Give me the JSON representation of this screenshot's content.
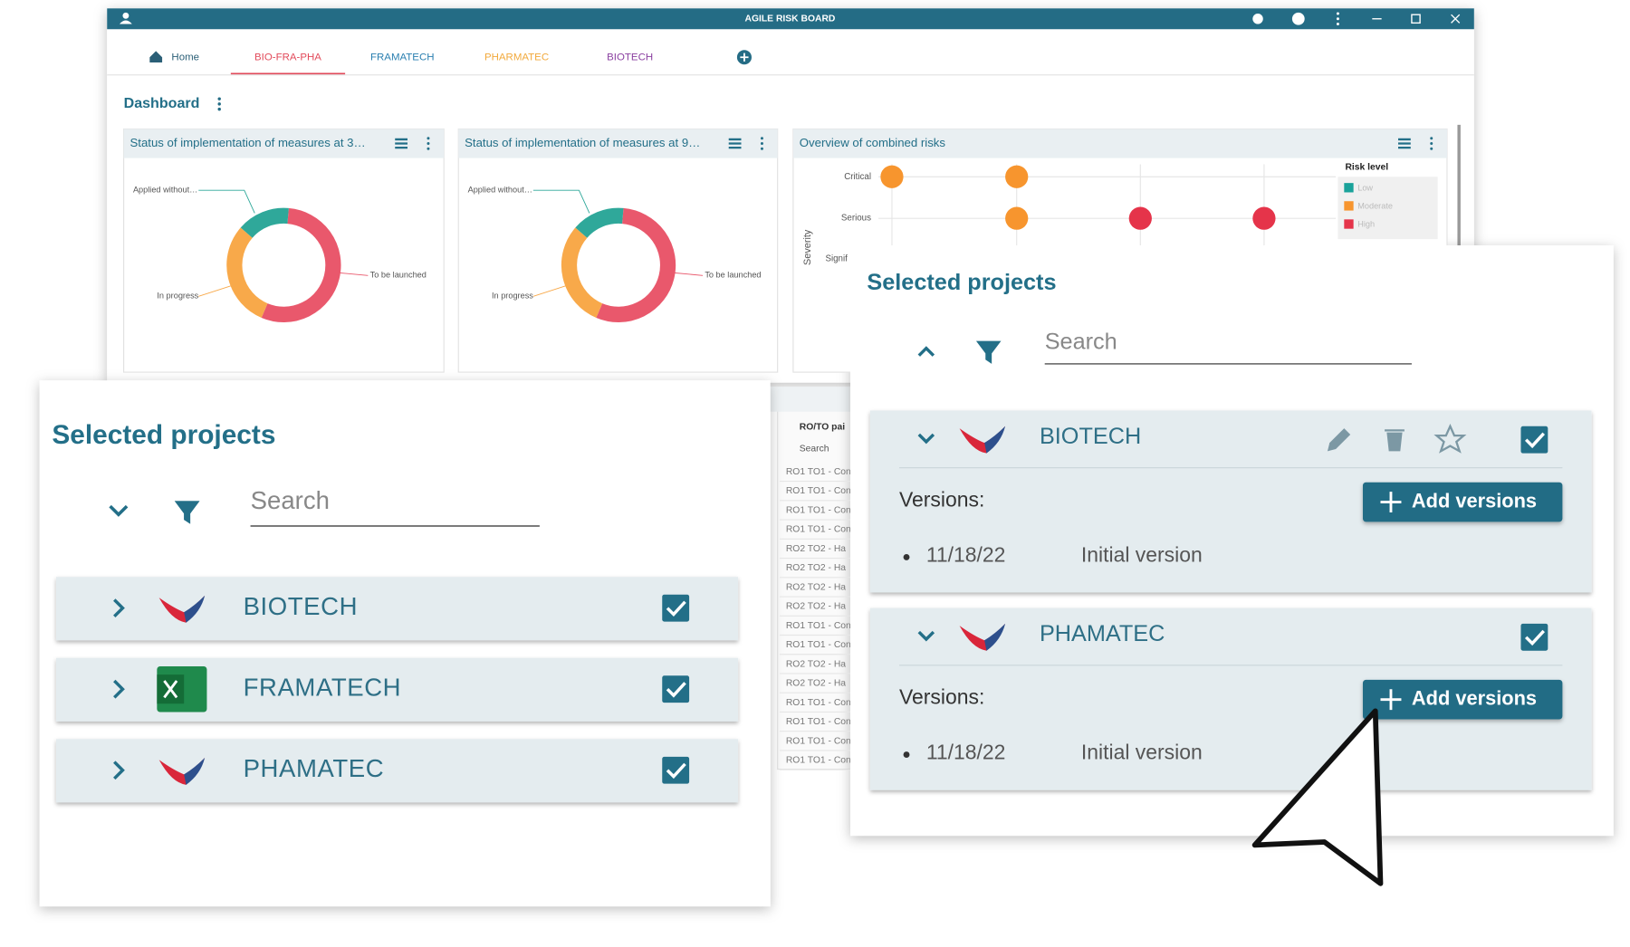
{
  "window": {
    "title": "AGILE RISK BOARD"
  },
  "tabs": [
    "Home",
    "BIO-FRA-PHA",
    "FRAMATECH",
    "PHARMATEC",
    "BIOTECH"
  ],
  "dashboard": {
    "title": "Dashboard",
    "widgets": [
      {
        "title": "Status of implementation of measures at 3…",
        "type": "donut",
        "labels": [
          "To be launched",
          "In progress",
          "Applied without…"
        ],
        "values": [
          55,
          30,
          15
        ],
        "colors": [
          "#e9586c",
          "#f8a94a",
          "#2fa89a"
        ]
      },
      {
        "title": "Status of implementation of measures at 9…",
        "type": "donut",
        "labels": [
          "To be launched",
          "In progress",
          "Applied without…"
        ],
        "values": [
          55,
          30,
          15
        ],
        "colors": [
          "#e9586c",
          "#f8a94a",
          "#2fa89a"
        ]
      },
      {
        "title": "Overview of combined risks",
        "type": "scatter",
        "axis_label": "Severity",
        "categories": [
          "Critical",
          "Serious",
          "Signif"
        ],
        "legend_title": "Risk level",
        "legend": [
          "Low",
          "Moderate",
          "High"
        ],
        "legend_colors": [
          "#1aa29a",
          "#f7952e",
          "#e5344a"
        ]
      }
    ]
  },
  "table": {
    "header": "RO/TO pai",
    "search": "Search",
    "rows": [
      "RO1 TO1 - Con",
      "RO1 TO1 - Con",
      "RO1 TO1 - Con",
      "RO1 TO1 - Con",
      "RO2 TO2 - Ha",
      "RO2 TO2 - Ha",
      "RO2 TO2 - Ha",
      "RO2 TO2 - Ha",
      "RO1 TO1 - Con",
      "RO1 TO1 - Con",
      "RO2 TO2 - Ha",
      "RO2 TO2 - Ha",
      "RO1 TO1 - Con",
      "RO1 TO1 - Con",
      "RO1 TO1 - Con",
      "RO1 TO1 - Con"
    ]
  },
  "left_panel": {
    "title": "Selected projects",
    "search": "Search",
    "projects": [
      "BIOTECH",
      "FRAMATECH",
      "PHAMATEC"
    ]
  },
  "right_panel": {
    "title": "Selected projects",
    "search": "Search",
    "projects": [
      {
        "name": "BIOTECH",
        "versions_label": "Versions:",
        "button": "Add versions",
        "versions": [
          {
            "date": "11/18/22",
            "label": "Initial version"
          }
        ]
      },
      {
        "name": "PHAMATEC",
        "versions_label": "Versions:",
        "button": "Add versions",
        "versions": [
          {
            "date": "11/18/22",
            "label": "Initial version"
          }
        ]
      }
    ]
  }
}
